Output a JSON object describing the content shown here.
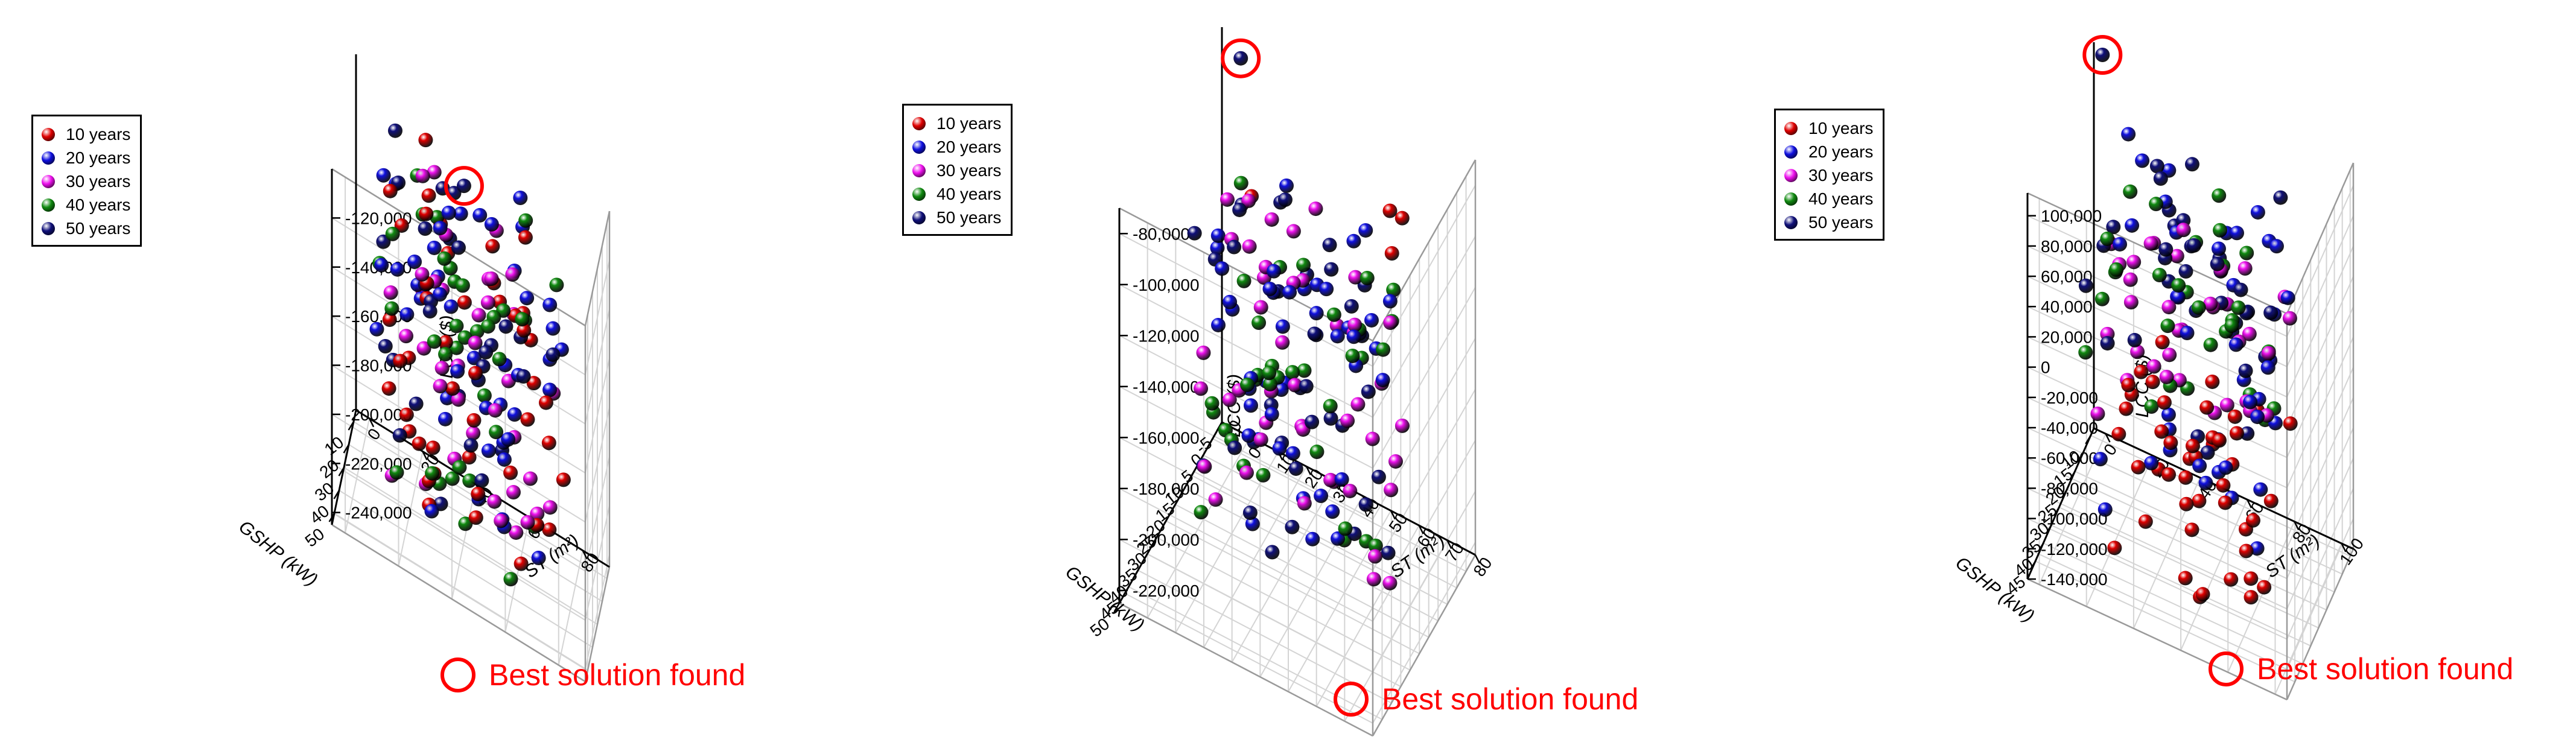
{
  "colors": {
    "10 years": "#e00000",
    "20 years": "#1010e0",
    "30 years": "#ee10ee",
    "40 years": "#108a10",
    "50 years": "#10107a",
    "marker": "#ff0000"
  },
  "legend": {
    "entries": [
      "10 years",
      "20 years",
      "30 years",
      "40 years",
      "50 years"
    ]
  },
  "note": {
    "text": "Best solution found"
  },
  "chart_data": [
    {
      "type": "scatter",
      "title": "",
      "xlabel": "GSHP (kW)",
      "ylabel": "ST (m²)",
      "zlabel": "LCC ($)",
      "xticks": [
        10,
        20,
        30,
        40,
        50
      ],
      "yticks": [
        0,
        20,
        40,
        60,
        80
      ],
      "zticks": [
        -240000,
        -220000,
        -200000,
        -180000,
        -160000,
        -140000,
        -120000
      ],
      "xlim": [
        5,
        55
      ],
      "ylim": [
        -5,
        90
      ],
      "zlim": [
        -245000,
        -100000
      ],
      "grid": true,
      "legend_position": "top-left",
      "best_solution": {
        "x": 30,
        "y": 40,
        "z": -100000
      },
      "series": [
        {
          "name": "10 years",
          "count": 45,
          "z_range": [
            -240000,
            -100000
          ]
        },
        {
          "name": "20 years",
          "count": 45,
          "z_range": [
            -240000,
            -100000
          ]
        },
        {
          "name": "30 years",
          "count": 38,
          "z_range": [
            -240000,
            -110000
          ]
        },
        {
          "name": "40 years",
          "count": 35,
          "z_range": [
            -240000,
            -105000
          ]
        },
        {
          "name": "50 years",
          "count": 28,
          "z_range": [
            -240000,
            -100000
          ]
        }
      ]
    },
    {
      "type": "scatter",
      "title": "",
      "xlabel": "GSHP (kW)",
      "ylabel": "ST (m²)",
      "zlabel": "LCC ($)",
      "xticks": [
        -5,
        0,
        5,
        10,
        15,
        20,
        25,
        30,
        35,
        40,
        45,
        50
      ],
      "yticks": [
        -10,
        0,
        10,
        20,
        30,
        40,
        50,
        60,
        70,
        80
      ],
      "zticks": [
        -220000,
        -200000,
        -180000,
        -160000,
        -140000,
        -120000,
        -100000,
        -80000
      ],
      "xlim": [
        -5,
        50
      ],
      "ylim": [
        -10,
        80
      ],
      "zlim": [
        -225000,
        -70000
      ],
      "grid": true,
      "legend_position": "top-left",
      "best_solution": {
        "x": 0,
        "y": 0,
        "z": -70000
      },
      "series": [
        {
          "name": "10 years",
          "count": 4,
          "z_range": [
            -110000,
            -70000
          ]
        },
        {
          "name": "20 years",
          "count": 45,
          "z_range": [
            -215000,
            -85000
          ]
        },
        {
          "name": "30 years",
          "count": 45,
          "z_range": [
            -215000,
            -95000
          ]
        },
        {
          "name": "40 years",
          "count": 35,
          "z_range": [
            -215000,
            -100000
          ]
        },
        {
          "name": "50 years",
          "count": 35,
          "z_range": [
            -215000,
            -85000
          ]
        }
      ]
    },
    {
      "type": "scatter",
      "title": "",
      "xlabel": "GSHP (kW)",
      "ylabel": "ST (m²)",
      "zlabel": "LCC ($)",
      "xticks": [
        10,
        15,
        20,
        25,
        30,
        35,
        40,
        45
      ],
      "yticks": [
        0,
        20,
        40,
        60,
        80,
        100
      ],
      "zticks": [
        -140000,
        -120000,
        -100000,
        -80000,
        -60000,
        -40000,
        -20000,
        0,
        20000,
        40000,
        60000,
        80000,
        100000
      ],
      "xlim": [
        8,
        50
      ],
      "ylim": [
        -5,
        105
      ],
      "zlim": [
        -140000,
        115000
      ],
      "grid": true,
      "legend_position": "top-left",
      "best_solution": {
        "x": 10,
        "y": 0,
        "z": 115000
      },
      "series": [
        {
          "name": "10 years",
          "count": 45,
          "z_range": [
            -140000,
            -20000
          ]
        },
        {
          "name": "20 years",
          "count": 40,
          "z_range": [
            -110000,
            110000
          ]
        },
        {
          "name": "30 years",
          "count": 35,
          "z_range": [
            -40000,
            60000
          ]
        },
        {
          "name": "40 years",
          "count": 30,
          "z_range": [
            -20000,
            80000
          ]
        },
        {
          "name": "50 years",
          "count": 35,
          "z_range": [
            -40000,
            110000
          ]
        }
      ]
    }
  ]
}
